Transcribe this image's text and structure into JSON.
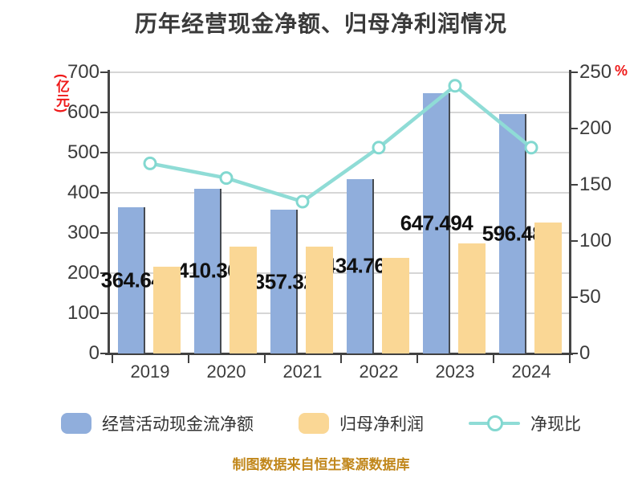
{
  "title": "历年经营现金净额、归母净利润情况",
  "source_note": "制图数据来自恒生聚源数据库",
  "left_axis": {
    "unit": "(亿元)",
    "min": 0,
    "max": 700,
    "ticks": [
      "700",
      "600",
      "500",
      "400",
      "300",
      "200",
      "100",
      "0"
    ]
  },
  "right_axis": {
    "unit": "%",
    "min": 0,
    "max": 250,
    "ticks": [
      "250",
      "200",
      "150",
      "100",
      "50",
      "0"
    ]
  },
  "colors": {
    "bar_cashflow": "#90aedc",
    "bar_profit": "#fad795",
    "line_ratio": "#8fdcd6",
    "marker_fill": "#ffffff",
    "axis_unit_red": "#ef1a1a",
    "source_orange": "#c1871b",
    "grid": "#d6d6d6",
    "axis": "#414141",
    "data_label": "#101010"
  },
  "chart_data": {
    "type": "bar+line combo",
    "categories": [
      "2019",
      "2020",
      "2021",
      "2022",
      "2023",
      "2024"
    ],
    "series": [
      {
        "name": "经营活动现金流净额",
        "type": "bar",
        "axis": "left",
        "values": [
          364.64,
          410.36,
          357.32,
          434.767,
          647.494,
          596.48
        ],
        "labels": [
          "364.64",
          "410.36",
          "357.32",
          "434.767",
          "647.494",
          "596.48"
        ]
      },
      {
        "name": "归母净利润",
        "type": "bar",
        "axis": "left",
        "values": [
          216,
          266,
          266,
          238,
          274,
          326
        ]
      },
      {
        "name": "净现比",
        "type": "line",
        "axis": "right",
        "values": [
          169,
          156,
          135,
          183,
          238,
          183
        ]
      }
    ],
    "left_ylim": [
      0,
      700
    ],
    "right_ylim": [
      0,
      250
    ],
    "grid": "horizontal",
    "legend_position": "bottom"
  }
}
